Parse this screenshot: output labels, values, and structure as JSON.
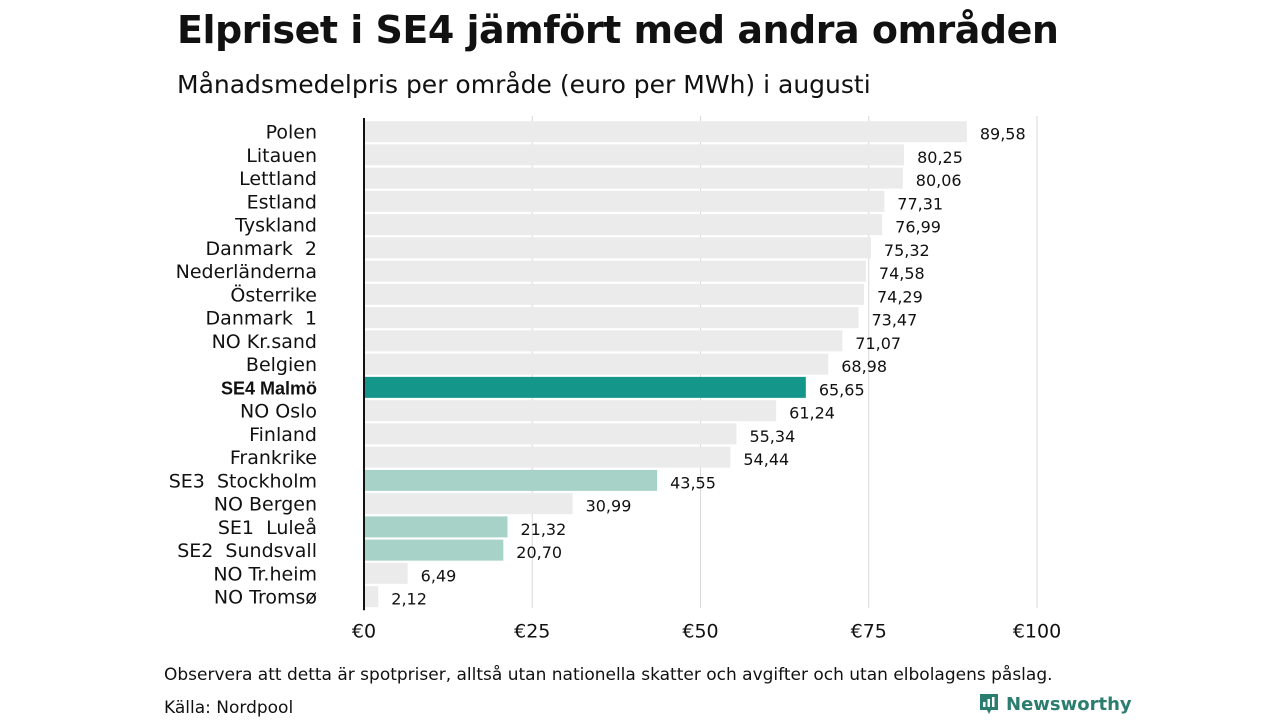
{
  "header": {
    "title": "Elpriset i SE4 jämfört med andra områden",
    "subtitle": "Månadsmedelpris per område (euro per MWh) i augusti"
  },
  "colors": {
    "highlight": "#14968a",
    "secondary": "#a6d2c8",
    "default": "#ebebeb",
    "axis": "#111111",
    "grid": "#d9d9d9",
    "brand": "#2a7d6f"
  },
  "chart_data": {
    "type": "bar",
    "orientation": "horizontal",
    "categories": [
      "Polen",
      "Litauen",
      "Lettland",
      "Estland",
      "Tyskland",
      "Danmark  2",
      "Nederländerna",
      "Österrike",
      "Danmark  1",
      "NO Kr.sand",
      "Belgien",
      "SE4 Malmö",
      "NO Oslo",
      "Finland",
      "Frankrike",
      "SE3  Stockholm",
      "NO Bergen",
      "SE1  Luleå",
      "SE2  Sundsvall",
      "NO Tr.heim",
      "NO Tromsø"
    ],
    "values": [
      89.58,
      80.25,
      80.06,
      77.31,
      76.99,
      75.32,
      74.58,
      74.29,
      73.47,
      71.07,
      68.98,
      65.65,
      61.24,
      55.34,
      54.44,
      43.55,
      30.99,
      21.32,
      20.7,
      6.49,
      2.12
    ],
    "value_labels": [
      "89,58",
      "80,25",
      "80,06",
      "77,31",
      "76,99",
      "75,32",
      "74,58",
      "74,29",
      "73,47",
      "71,07",
      "68,98",
      "65,65",
      "61,24",
      "55,34",
      "54,44",
      "43,55",
      "30,99",
      "21,32",
      "20,70",
      "6,49",
      "2,12"
    ],
    "highlight": [
      "default",
      "default",
      "default",
      "default",
      "default",
      "default",
      "default",
      "default",
      "default",
      "default",
      "default",
      "highlight",
      "default",
      "default",
      "default",
      "secondary",
      "default",
      "secondary",
      "secondary",
      "default",
      "default"
    ],
    "bold": [
      false,
      false,
      false,
      false,
      false,
      false,
      false,
      false,
      false,
      false,
      false,
      true,
      false,
      false,
      false,
      false,
      false,
      false,
      false,
      false,
      false
    ],
    "x_ticks": [
      0,
      25,
      50,
      75,
      100
    ],
    "x_tick_labels": [
      "€0",
      "€25",
      "€50",
      "€75",
      "€100"
    ],
    "xlim": [
      0,
      100
    ],
    "grid": true,
    "title": "Elpriset i SE4 jämfört med andra områden",
    "subtitle": "Månadsmedelpris per område (euro per MWh) i augusti",
    "xlabel": "",
    "ylabel": ""
  },
  "footer": {
    "note": "Observera att detta är spotpriser, alltså utan nationella skatter och avgifter och utan elbolagens påslag.",
    "source": "Källa: Nordpool",
    "brand": "Newsworthy"
  }
}
